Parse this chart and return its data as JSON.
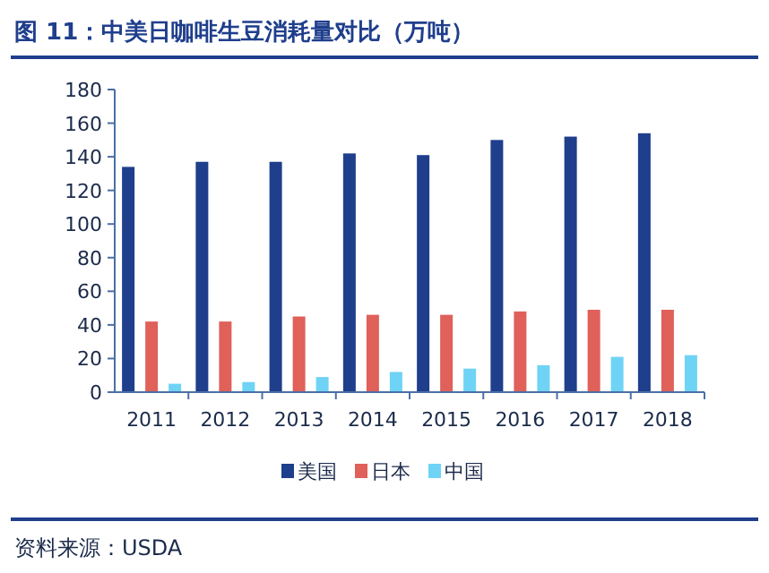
{
  "chart_data": {
    "type": "bar",
    "title": "图 11：中美日咖啡生豆消耗量对比（万吨）",
    "categories": [
      "2011",
      "2012",
      "2013",
      "2014",
      "2015",
      "2016",
      "2017",
      "2018"
    ],
    "series": [
      {
        "name": "美国",
        "color": "#1f3e8c",
        "values": [
          134,
          137,
          137,
          142,
          141,
          150,
          152,
          154
        ]
      },
      {
        "name": "日本",
        "color": "#e0605a",
        "values": [
          42,
          42,
          45,
          46,
          46,
          48,
          49,
          49
        ]
      },
      {
        "name": "中国",
        "color": "#6fd3f5",
        "values": [
          5,
          6,
          9,
          12,
          14,
          16,
          21,
          22
        ]
      }
    ],
    "ylim": [
      0,
      180
    ],
    "yticks": [
      0,
      20,
      40,
      60,
      80,
      100,
      120,
      140,
      160,
      180
    ],
    "legend": "bottom",
    "annotations": [
      "资料来源：USDA"
    ]
  }
}
